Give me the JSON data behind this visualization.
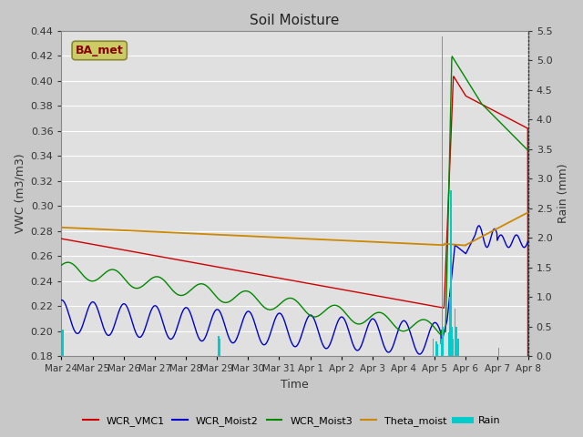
{
  "title": "Soil Moisture",
  "xlabel": "Time",
  "ylabel_left": "VWC (m3/m3)",
  "ylabel_right": "Rain (mm)",
  "ylim_left": [
    0.18,
    0.44
  ],
  "ylim_right": [
    0.0,
    5.5
  ],
  "yticks_left": [
    0.18,
    0.2,
    0.22,
    0.24,
    0.26,
    0.28,
    0.3,
    0.32,
    0.34,
    0.36,
    0.38,
    0.4,
    0.42,
    0.44
  ],
  "yticks_right": [
    0.0,
    0.5,
    1.0,
    1.5,
    2.0,
    2.5,
    3.0,
    3.5,
    4.0,
    4.5,
    5.0,
    5.5
  ],
  "xtick_labels": [
    "Mar 24",
    "Mar 25",
    "Mar 26",
    "Mar 27",
    "Mar 28",
    "Mar 29",
    "Mar 30",
    "Mar 31",
    "Apr 1",
    "Apr 2",
    "Apr 3",
    "Apr 4",
    "Apr 5",
    "Apr 6",
    "Apr 7",
    "Apr 8"
  ],
  "fig_bg_color": "#c8c8c8",
  "plot_bg_color": "#e0e0e0",
  "grid_color": "#ffffff",
  "colors": {
    "WCR_VMC1": "#cc0000",
    "WCR_Moist2": "#0000cc",
    "WCR_Moist3": "#008800",
    "Theta_moist": "#cc8800",
    "Rain": "#00cccc"
  },
  "station_label": "BA_met",
  "station_label_color": "#880000",
  "station_box_facecolor": "#cccc66",
  "station_box_edgecolor": "#888833"
}
